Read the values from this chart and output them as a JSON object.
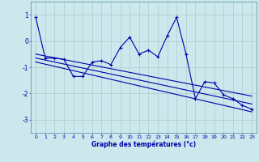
{
  "xlabel": "Graphe des températures (°c)",
  "background_color": "#cce8ec",
  "grid_color": "#aacccc",
  "line_color": "#0000aa",
  "ylim": [
    -3.5,
    1.5
  ],
  "xlim": [
    -0.5,
    23.5
  ],
  "yticks": [
    -3,
    -2,
    -1,
    0,
    1
  ],
  "xticks": [
    0,
    1,
    2,
    3,
    4,
    5,
    6,
    7,
    8,
    9,
    10,
    11,
    12,
    13,
    14,
    15,
    16,
    17,
    18,
    19,
    20,
    21,
    22,
    23
  ],
  "series1_x": [
    0,
    1,
    2,
    3,
    4,
    5,
    6,
    7,
    8,
    9,
    10,
    11,
    12,
    13,
    14,
    15,
    16,
    17,
    18,
    19,
    20,
    21,
    22,
    23
  ],
  "series1_y": [
    0.9,
    -0.65,
    -0.65,
    -0.7,
    -1.35,
    -1.35,
    -0.8,
    -0.75,
    -0.9,
    -0.25,
    0.15,
    -0.5,
    -0.35,
    -0.6,
    0.2,
    0.9,
    -0.5,
    -2.2,
    -1.55,
    -1.6,
    -2.05,
    -2.2,
    -2.45,
    -2.6
  ],
  "trend1_x": [
    0,
    23
  ],
  "trend1_y": [
    -0.5,
    -2.1
  ],
  "trend2_x": [
    0,
    23
  ],
  "trend2_y": [
    -0.65,
    -2.4
  ],
  "trend3_x": [
    0,
    23
  ],
  "trend3_y": [
    -0.8,
    -2.7
  ]
}
